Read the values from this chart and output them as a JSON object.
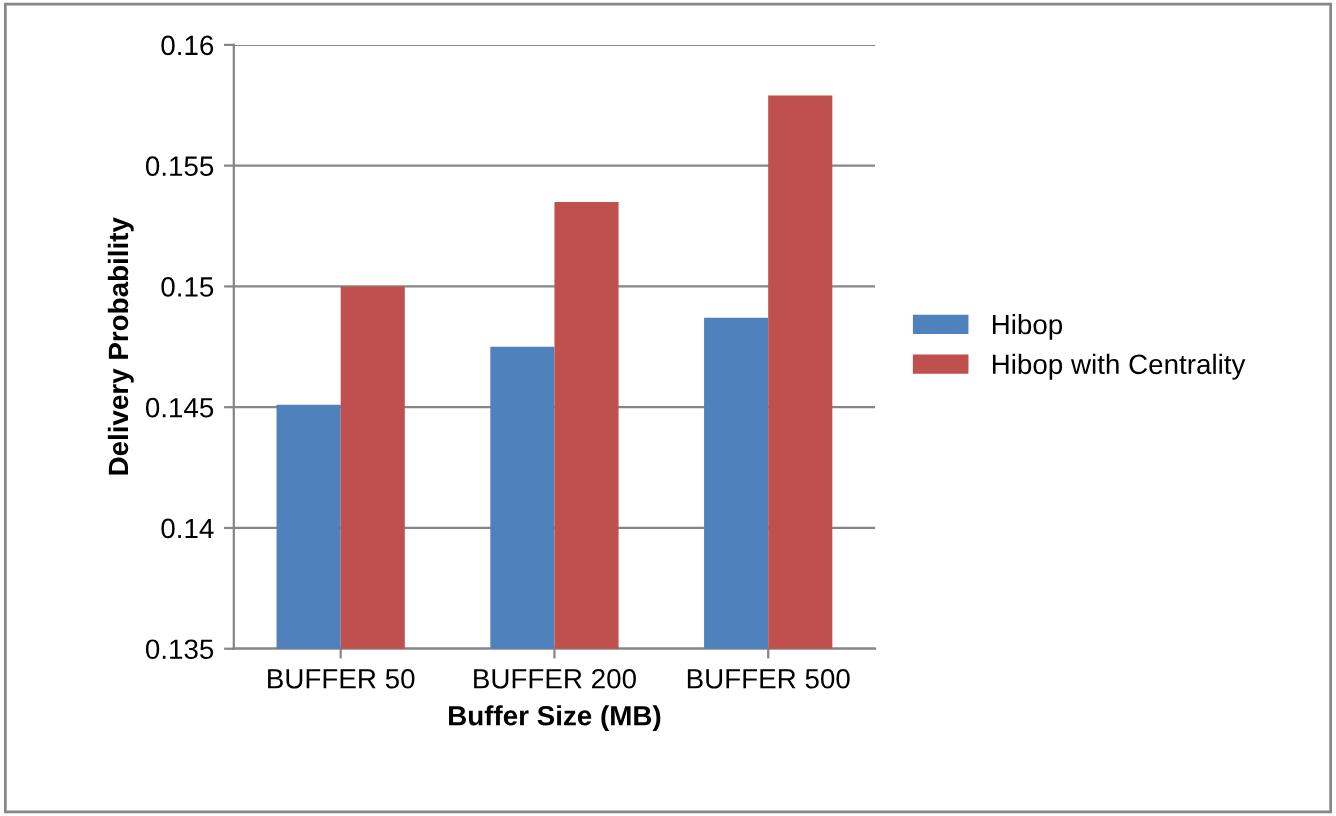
{
  "chart_data": {
    "type": "bar",
    "xlabel": "Buffer Size (MB)",
    "ylabel": "Delivery Probability",
    "categories": [
      "BUFFER 50",
      "BUFFER 200",
      "BUFFER 500"
    ],
    "series": [
      {
        "name": "Hibop",
        "color": "#4f81bd",
        "values": [
          0.1451,
          0.1475,
          0.1487
        ]
      },
      {
        "name": "Hibop with Centrality",
        "color": "#c0504d",
        "values": [
          0.15,
          0.1535,
          0.1579
        ]
      }
    ],
    "ylim": [
      0.135,
      0.16
    ],
    "yticks": [
      0.135,
      0.14,
      0.145,
      0.15,
      0.155,
      0.16
    ],
    "grid": "y",
    "legend": "right"
  }
}
